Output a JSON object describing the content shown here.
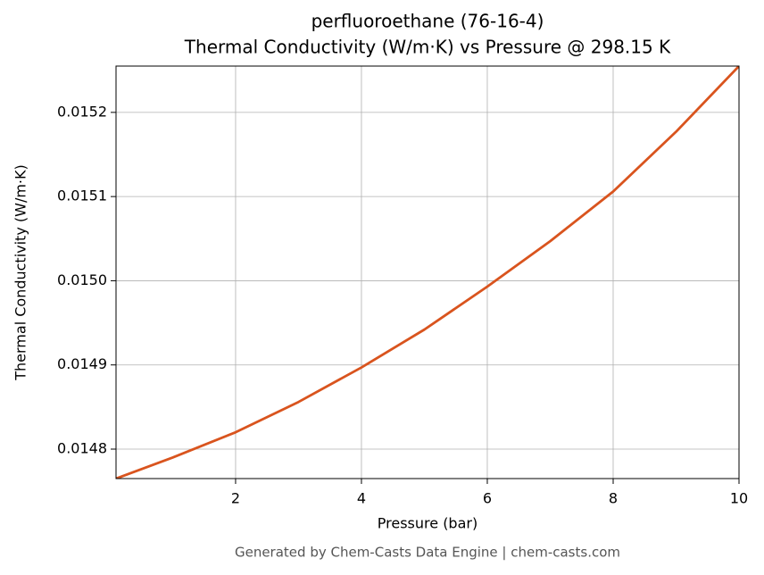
{
  "chart_data": {
    "type": "line",
    "title": "perfluoroethane (76-16-4)",
    "subtitle": "Thermal Conductivity (W/m·K) vs Pressure @ 298.15 K",
    "xlabel": "Pressure (bar)",
    "ylabel": "Thermal Conductivity (W/m·K)",
    "footer": "Generated by Chem-Casts Data Engine | chem-casts.com",
    "x": [
      0.1,
      1,
      2,
      3,
      4,
      5,
      6,
      7,
      8,
      9,
      10
    ],
    "series": [
      {
        "name": "Thermal Conductivity",
        "color": "#d9541e",
        "values": [
          0.014765,
          0.01479,
          0.01482,
          0.014856,
          0.014897,
          0.014942,
          0.014993,
          0.015047,
          0.015106,
          0.015177,
          0.015255
        ]
      }
    ],
    "xlim": [
      0.1,
      10
    ],
    "xticks": [
      2,
      4,
      6,
      8,
      10
    ],
    "ylim": [
      0.014765,
      0.015255
    ],
    "yticks": [
      0.0148,
      0.0149,
      {
        "value": 0.015,
        "label": "0.0150"
      },
      0.0151,
      0.0152
    ],
    "grid": true
  }
}
